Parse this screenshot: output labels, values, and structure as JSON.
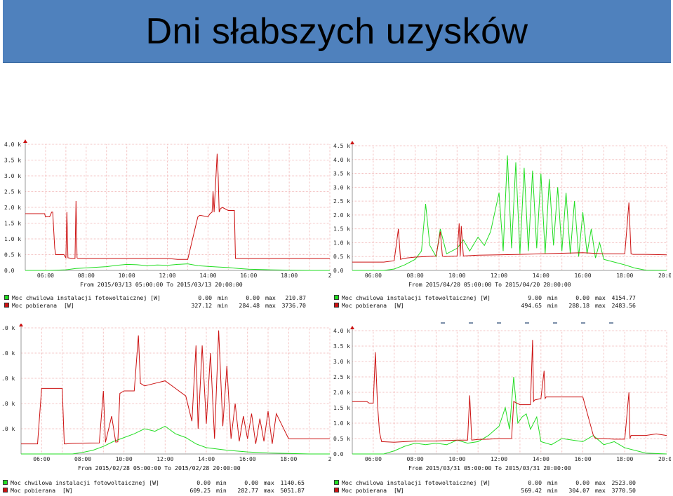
{
  "page": {
    "title": "Dni słabszych uzysków"
  },
  "colors": {
    "title_bar": "#4f81bd",
    "series_pv": "#22dd22",
    "series_load": "#cc1111",
    "grid": "#f3c0c0"
  },
  "chart_data": [
    {
      "type": "line",
      "panel": "top-left",
      "range_text": "From 2015/03/13 05:00:00 To 2015/03/13 20:00:00",
      "x_ticks": [
        "06:00",
        "08:00",
        "10:00",
        "12:00",
        "14:00",
        "16:00",
        "18:00",
        "2"
      ],
      "x_range_hours": [
        5,
        20
      ],
      "ylim": [
        0,
        4000
      ],
      "y_ticks": [
        {
          "v": 0,
          "label": "0.0"
        },
        {
          "v": 500,
          "label": "0.5 k"
        },
        {
          "v": 1000,
          "label": "1.0 k"
        },
        {
          "v": 1500,
          "label": "1.5 k"
        },
        {
          "v": 2000,
          "label": "2.0 k"
        },
        {
          "v": 2500,
          "label": "2.5 k"
        },
        {
          "v": 3000,
          "label": "3.0 k"
        },
        {
          "v": 3500,
          "label": "3.5 k"
        },
        {
          "v": 4000,
          "label": "4.0 k"
        }
      ],
      "series": [
        {
          "name": "Moc chwilowa instalacji fotowoltaicznej [W]",
          "color": "#22dd22",
          "stats": {
            "current": "0.00",
            "min": "0.00",
            "max": "210.87"
          },
          "x": [
            5,
            6.2,
            7,
            7.5,
            8,
            8.5,
            9,
            9.5,
            10,
            10.5,
            11,
            11.5,
            12,
            12.5,
            13,
            13.5,
            14,
            14.5,
            15,
            15.5,
            16,
            17,
            18,
            19,
            20
          ],
          "y": [
            0,
            0,
            20,
            60,
            80,
            100,
            120,
            160,
            190,
            180,
            150,
            170,
            160,
            190,
            210,
            150,
            130,
            110,
            90,
            60,
            40,
            20,
            10,
            0,
            0
          ]
        },
        {
          "name": "Moc pobierana  [W]",
          "color": "#cc1111",
          "stats": {
            "current": "327.12",
            "min": "284.48",
            "max": "3736.70"
          },
          "x": [
            5,
            5.95,
            6.0,
            6.2,
            6.3,
            6.35,
            6.45,
            6.5,
            6.9,
            7.0,
            7.05,
            7.1,
            7.3,
            7.45,
            7.5,
            7.55,
            7.6,
            8,
            9,
            10,
            11,
            12,
            12.5,
            12.8,
            13.0,
            13.5,
            13.6,
            14,
            14.1,
            14.2,
            14.25,
            14.3,
            14.45,
            14.5,
            14.55,
            14.6,
            14.7,
            15.0,
            15.3,
            15.35,
            16,
            17,
            18,
            19,
            20
          ],
          "y": [
            1800,
            1800,
            1700,
            1700,
            1850,
            1850,
            700,
            500,
            500,
            400,
            1850,
            400,
            380,
            380,
            2200,
            400,
            380,
            380,
            380,
            380,
            380,
            380,
            350,
            350,
            350,
            1700,
            1750,
            1700,
            1800,
            1850,
            2500,
            1850,
            3700,
            3000,
            1850,
            1950,
            2000,
            1900,
            1900,
            380,
            380,
            380,
            380,
            380,
            380
          ]
        }
      ]
    },
    {
      "type": "line",
      "panel": "top-right",
      "range_text": "From 2015/04/20 05:00:00 To 2015/04/20 20:00:00",
      "x_ticks": [
        "06:00",
        "08:00",
        "10:00",
        "12:00",
        "14:00",
        "16:00",
        "18:00",
        "20:00"
      ],
      "x_range_hours": [
        5,
        20
      ],
      "ylim": [
        0,
        4500
      ],
      "y_ticks": [
        {
          "v": 0,
          "label": "0.0"
        },
        {
          "v": 500,
          "label": "0.5 k"
        },
        {
          "v": 1000,
          "label": "1.0 k"
        },
        {
          "v": 1500,
          "label": "1.5 k"
        },
        {
          "v": 2000,
          "label": "2.0 k"
        },
        {
          "v": 2500,
          "label": "2.5 k"
        },
        {
          "v": 3000,
          "label": "3.0 k"
        },
        {
          "v": 3500,
          "label": "3.5 k"
        },
        {
          "v": 4000,
          "label": "4.0 k"
        },
        {
          "v": 4500,
          "label": "4.5 k"
        }
      ],
      "series": [
        {
          "name": "Moc chwilowa instalacji fotowoltaicznej [W]",
          "color": "#22dd22",
          "stats": {
            "current": "9.00",
            "min": "0.00",
            "max": "4154.77"
          },
          "x": [
            5,
            6.5,
            7,
            7.5,
            8,
            8.3,
            8.5,
            8.7,
            9,
            9.2,
            9.5,
            10,
            10.3,
            10.6,
            11,
            11.3,
            11.6,
            12,
            12.2,
            12.4,
            12.6,
            12.8,
            13,
            13.2,
            13.4,
            13.6,
            13.8,
            14,
            14.2,
            14.4,
            14.6,
            14.8,
            15,
            15.2,
            15.4,
            15.6,
            15.8,
            16,
            16.2,
            16.4,
            16.6,
            16.8,
            17,
            17.5,
            18,
            18.5,
            19,
            20
          ],
          "y": [
            0,
            0,
            50,
            200,
            400,
            700,
            2400,
            900,
            500,
            1500,
            600,
            800,
            1100,
            700,
            1200,
            900,
            1400,
            2800,
            700,
            4150,
            800,
            3900,
            600,
            3700,
            700,
            3600,
            800,
            3500,
            600,
            3300,
            900,
            3000,
            700,
            2800,
            600,
            2500,
            500,
            2100,
            600,
            1500,
            450,
            1000,
            400,
            300,
            200,
            80,
            10,
            0
          ]
        },
        {
          "name": "Moc pobierana  [W]",
          "color": "#cc1111",
          "stats": {
            "current": "494.65",
            "min": "288.18",
            "max": "2483.56"
          },
          "x": [
            5,
            6.5,
            7,
            7.2,
            7.3,
            7.4,
            7.6,
            8,
            8.5,
            9,
            9.2,
            9.3,
            9.4,
            10,
            10.1,
            10.15,
            10.2,
            10.3,
            11,
            12,
            13,
            14,
            15,
            16,
            17,
            18,
            18.2,
            18.3,
            18.4,
            19,
            20
          ],
          "y": [
            300,
            300,
            350,
            1500,
            400,
            420,
            450,
            480,
            500,
            520,
            1400,
            520,
            500,
            520,
            1700,
            520,
            1600,
            520,
            550,
            560,
            580,
            600,
            620,
            640,
            600,
            600,
            2450,
            600,
            580,
            580,
            560
          ]
        }
      ]
    },
    {
      "type": "line",
      "panel": "bottom-left",
      "range_text": "From 2015/02/28 05:00:00 To 2015/02/28 20:00:00",
      "x_ticks": [
        "06:00",
        "08:00",
        "10:00",
        "12:00",
        "14:00",
        "16:00",
        "18:00",
        "2"
      ],
      "x_range_hours": [
        5,
        20
      ],
      "ylim": [
        0,
        5000
      ],
      "y_ticks": [
        {
          "v": 1000,
          "label": ".0 k"
        },
        {
          "v": 2000,
          "label": ".0 k"
        },
        {
          "v": 3000,
          "label": ".0 k"
        },
        {
          "v": 4000,
          "label": ".0 k"
        },
        {
          "v": 5000,
          "label": ".0 k"
        }
      ],
      "series": [
        {
          "name": "Moc chwilowa instalacji fotowoltaicznej [W]",
          "color": "#22dd22",
          "stats": {
            "current": "0.00",
            "min": "0.00",
            "max": "1140.65"
          },
          "x": [
            5,
            7.5,
            8,
            8.5,
            9,
            9.5,
            10,
            10.5,
            11,
            11.5,
            12,
            12.5,
            13,
            13.5,
            14,
            15,
            16,
            17,
            18,
            19,
            20
          ],
          "y": [
            0,
            0,
            60,
            150,
            300,
            500,
            650,
            800,
            1000,
            900,
            1100,
            800,
            650,
            400,
            250,
            150,
            80,
            40,
            20,
            0,
            0
          ]
        },
        {
          "name": "Moc pobierana  [W]",
          "color": "#cc1111",
          "stats": {
            "current": "609.25",
            "min": "282.77",
            "max": "5051.87"
          },
          "x": [
            5,
            5.8,
            6,
            6.5,
            7,
            7.1,
            7.2,
            7.5,
            8,
            8.8,
            9,
            9.1,
            9.4,
            9.6,
            9.7,
            9.8,
            10,
            10.5,
            10.7,
            10.8,
            11,
            11.5,
            12,
            12.5,
            13,
            13.3,
            13.5,
            13.6,
            13.8,
            14,
            14.2,
            14.4,
            14.6,
            14.8,
            15,
            15.2,
            15.4,
            15.6,
            15.8,
            16,
            16.2,
            16.4,
            16.6,
            16.8,
            17,
            17.2,
            17.4,
            18,
            19,
            20
          ],
          "y": [
            400,
            400,
            2600,
            2600,
            2600,
            400,
            400,
            420,
            430,
            440,
            2500,
            460,
            1500,
            470,
            480,
            2400,
            2500,
            2500,
            4700,
            2800,
            2700,
            2800,
            2900,
            2600,
            2300,
            1300,
            4300,
            1000,
            4300,
            1200,
            4000,
            600,
            4900,
            1100,
            3500,
            600,
            2000,
            500,
            1500,
            600,
            1600,
            400,
            1400,
            500,
            1700,
            400,
            1600,
            600,
            600,
            600
          ]
        }
      ]
    },
    {
      "type": "line",
      "panel": "bottom-right",
      "range_text": "From 2015/03/31 05:00:00 To 2015/03/31 20:00:00",
      "x_ticks": [
        "06:00",
        "08:00",
        "10:00",
        "12:00",
        "14:00",
        "16:00",
        "18:00",
        "20:00"
      ],
      "x_range_hours": [
        5,
        20
      ],
      "ylim": [
        0,
        4000
      ],
      "y_ticks": [
        {
          "v": 0,
          "label": "0.0"
        },
        {
          "v": 500,
          "label": "0.5 k"
        },
        {
          "v": 1000,
          "label": "1.0 k"
        },
        {
          "v": 1500,
          "label": "1.5 k"
        },
        {
          "v": 2000,
          "label": "2.0 k"
        },
        {
          "v": 2500,
          "label": "2.5 k"
        },
        {
          "v": 3000,
          "label": "3.0 k"
        },
        {
          "v": 3500,
          "label": "3.5 k"
        },
        {
          "v": 4000,
          "label": "4.0 k"
        }
      ],
      "series": [
        {
          "name": "Moc chwilowa instalacji fotowoltaicznej [W]",
          "color": "#22dd22",
          "stats": {
            "current": "0.00",
            "min": "0.00",
            "max": "2523.00"
          },
          "x": [
            5,
            6.5,
            7,
            7.5,
            8,
            8.5,
            9,
            9.5,
            10,
            10.5,
            11,
            11.5,
            12,
            12.3,
            12.5,
            12.7,
            12.9,
            13.1,
            13.3,
            13.5,
            13.8,
            14,
            14.5,
            15,
            16,
            16.5,
            17,
            17.5,
            18,
            19,
            20
          ],
          "y": [
            0,
            0,
            100,
            250,
            350,
            300,
            350,
            300,
            450,
            350,
            400,
            600,
            900,
            1500,
            800,
            2500,
            1000,
            1200,
            1300,
            800,
            1200,
            400,
            300,
            500,
            400,
            600,
            300,
            400,
            200,
            30,
            0
          ]
        },
        {
          "name": "Moc pobierana  [W]",
          "color": "#cc1111",
          "stats": {
            "current": "569.42",
            "min": "304.07",
            "max": "3770.50"
          },
          "x": [
            5,
            5.7,
            5.8,
            6.0,
            6.1,
            6.2,
            6.3,
            6.4,
            7,
            7.5,
            8,
            9,
            10,
            10.5,
            10.6,
            10.7,
            11,
            11.5,
            12,
            12.6,
            12.7,
            13,
            13.5,
            13.6,
            13.65,
            13.7,
            14,
            14.15,
            14.2,
            14.25,
            15,
            16,
            16.5,
            16.6,
            17,
            17.5,
            18,
            18.2,
            18.25,
            18.3,
            19,
            19.5,
            20
          ],
          "y": [
            1700,
            1700,
            1650,
            1650,
            3300,
            1650,
            700,
            400,
            380,
            400,
            420,
            420,
            450,
            450,
            1900,
            450,
            470,
            480,
            500,
            500,
            1700,
            1600,
            1600,
            3700,
            1700,
            1750,
            1800,
            2700,
            1800,
            1850,
            1850,
            1850,
            600,
            500,
            500,
            480,
            480,
            2000,
            500,
            600,
            600,
            650,
            600
          ]
        }
      ]
    }
  ]
}
